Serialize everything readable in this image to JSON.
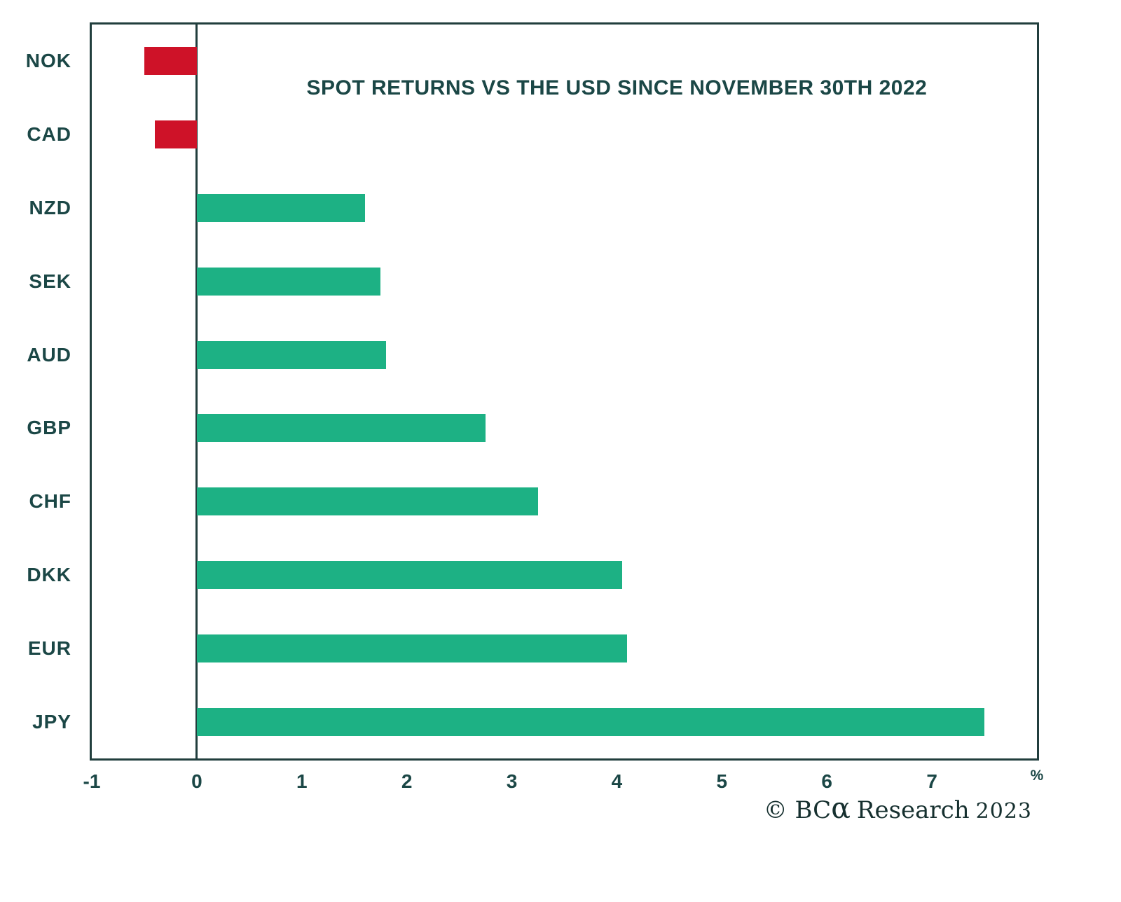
{
  "chart_data": {
    "type": "bar",
    "orientation": "horizontal",
    "title": "SPOT RETURNS VS THE USD SINCE NOVEMBER 30TH 2022",
    "categories": [
      "NOK",
      "CAD",
      "NZD",
      "SEK",
      "AUD",
      "GBP",
      "CHF",
      "DKK",
      "EUR",
      "JPY"
    ],
    "values": [
      -0.5,
      -0.4,
      1.6,
      1.75,
      1.8,
      2.75,
      3.25,
      4.05,
      4.1,
      7.5
    ],
    "xlabel": "",
    "ylabel": "",
    "xlim": [
      -1,
      8
    ],
    "xticks": [
      "-1",
      "0",
      "1",
      "2",
      "3",
      "4",
      "5",
      "6",
      "7"
    ],
    "unit_label": "%",
    "grid": false,
    "legend": null,
    "positive_color": "#1DB184",
    "negative_color": "#CE1228"
  },
  "attribution": {
    "prefix": "© BC",
    "alpha": "α",
    "suffix": "Research",
    "year": "2023"
  },
  "colors": {
    "text": "#1B4746",
    "frame": "#213E3D",
    "background": "#ffffff",
    "attribution_text": "#16302F"
  }
}
